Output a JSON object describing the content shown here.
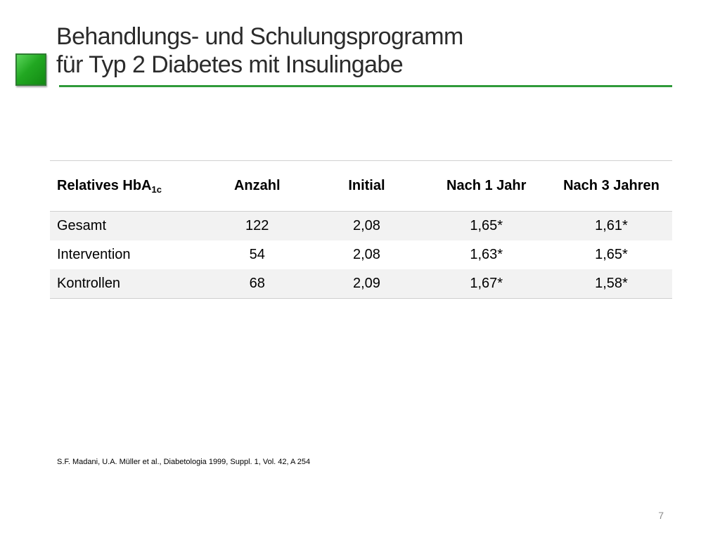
{
  "slide": {
    "title_line1": "Behandlungs- und Schulungsprogramm",
    "title_line2": "für Typ 2 Diabetes mit Insulingabe",
    "accent_color": "#2f9a3a"
  },
  "table": {
    "headers": {
      "label_main": "Relatives HbA",
      "label_sub": "1c",
      "anzahl": "Anzahl",
      "initial": "Initial",
      "jahr1": "Nach 1 Jahr",
      "jahr3": "Nach 3 Jahren"
    },
    "rows": [
      {
        "label": "Gesamt",
        "anzahl": "122",
        "initial": "2,08",
        "jahr1": "1,65*",
        "jahr3": "1,61*"
      },
      {
        "label": "Intervention",
        "anzahl": "54",
        "initial": "2,08",
        "jahr1": "1,63*",
        "jahr3": "1,65*"
      },
      {
        "label": "Kontrollen",
        "anzahl": "68",
        "initial": "2,09",
        "jahr1": "1,67*",
        "jahr3": "1,58*"
      }
    ]
  },
  "citation": "S.F. Madani, U.A. Müller et al., Diabetologia 1999, Suppl. 1, Vol. 42, A 254",
  "page_number": "7"
}
